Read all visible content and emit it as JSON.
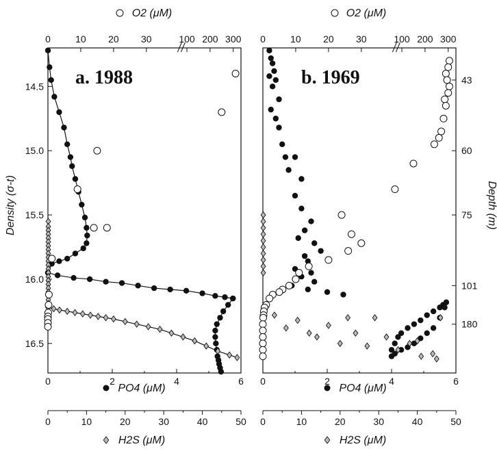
{
  "chart_data": [
    {
      "type": "scatter",
      "title": "a. 1988",
      "ylabel": "Density (σ-t)",
      "xlabel_top": "O2 (μM)",
      "xlabel_bottom": "PO4 (μM)",
      "xlabel_bottom2": "H2S (μM)",
      "ylim": [
        14.2,
        16.73
      ],
      "o2_ticks": [
        "0",
        "10",
        "20",
        "30",
        "100",
        "200",
        "300"
      ],
      "po4_ticks": [
        "0",
        "2",
        "4",
        "6"
      ],
      "h2s_ticks": [
        "0",
        "10",
        "20",
        "30",
        "40",
        "50"
      ],
      "density_ticks": [
        "14.5",
        "15.0",
        "15.5",
        "16.0",
        "16.5"
      ],
      "series": [
        {
          "name": "PO4",
          "marker": "filled-circle",
          "line": true,
          "x": [
            0.0,
            0.05,
            0.1,
            0.2,
            0.35,
            0.5,
            0.6,
            0.7,
            0.75,
            0.85,
            0.95,
            1.05,
            1.15,
            1.2,
            1.22,
            1.2,
            1.1,
            0.85,
            0.6,
            0.35,
            0.12,
            0.0
          ],
          "y": [
            14.22,
            14.35,
            14.45,
            14.58,
            14.7,
            14.82,
            14.95,
            15.05,
            15.12,
            15.22,
            15.32,
            15.42,
            15.52,
            15.6,
            15.66,
            15.72,
            15.76,
            15.8,
            15.84,
            15.86,
            15.88,
            15.95
          ]
        },
        {
          "name": "PO4",
          "marker": "filled-circle",
          "line": true,
          "x": [
            0.0,
            0.3,
            0.8,
            1.3,
            1.8,
            2.3,
            2.8,
            3.3,
            3.8,
            4.3,
            4.8,
            5.2,
            5.5,
            5.75
          ],
          "y": [
            15.95,
            15.97,
            15.99,
            16.0,
            16.02,
            16.03,
            16.05,
            16.07,
            16.08,
            16.09,
            16.11,
            16.13,
            16.14,
            16.15
          ]
        },
        {
          "name": "PO4",
          "marker": "filled-circle",
          "line": true,
          "x": [
            5.75,
            5.6,
            5.45,
            5.35,
            5.25,
            5.2,
            5.2,
            5.22,
            5.25,
            5.27,
            5.3,
            5.32,
            5.35,
            5.38
          ],
          "y": [
            16.15,
            16.2,
            16.25,
            16.3,
            16.35,
            16.4,
            16.45,
            16.5,
            16.55,
            16.6,
            16.63,
            16.66,
            16.69,
            16.72
          ]
        },
        {
          "name": "H2S",
          "marker": "diamond",
          "line": true,
          "x": [
            0.0,
            1.5,
            3.0,
            5.0,
            7.0,
            9.0,
            11.0,
            13.0,
            15.0,
            17.0,
            20.0,
            23.0,
            26.0,
            29.0,
            32.0,
            35.0,
            38.0,
            41.0,
            44.0,
            47.0,
            49.0
          ],
          "y": [
            16.22,
            16.23,
            16.24,
            16.25,
            16.26,
            16.27,
            16.28,
            16.29,
            16.3,
            16.31,
            16.33,
            16.35,
            16.37,
            16.39,
            16.42,
            16.45,
            16.48,
            16.52,
            16.56,
            16.59,
            16.61
          ]
        },
        {
          "name": "H2S",
          "marker": "diamond",
          "line": false,
          "x": [
            0.1,
            0.1,
            0.1,
            0.1,
            0.1,
            0.1,
            0.1,
            0.1,
            0.1,
            0.1,
            0.1,
            0.1,
            0.1,
            0.1,
            0.1,
            0.1,
            0.1,
            0.1,
            0.1,
            0.1,
            0.1,
            0.1
          ],
          "y": [
            15.55,
            15.59,
            15.62,
            15.65,
            15.68,
            15.71,
            15.74,
            15.77,
            15.8,
            15.83,
            15.86,
            15.89,
            15.92,
            15.95,
            15.98,
            16.01,
            16.04,
            16.07,
            16.1,
            16.13,
            16.16,
            16.19
          ]
        },
        {
          "name": "O2",
          "marker": "open-circle",
          "line": false,
          "x": [
            310,
            250,
            15,
            9,
            18,
            14,
            1.2,
            0.3,
            0.2,
            0.1,
            0,
            0,
            0,
            0
          ],
          "y": [
            14.4,
            14.7,
            15.0,
            15.3,
            15.6,
            15.6,
            15.84,
            16.12,
            16.2,
            16.26,
            16.29,
            16.31,
            16.34,
            16.37
          ]
        }
      ]
    },
    {
      "type": "scatter",
      "title": "b. 1969",
      "ylabel": "Depth (m)",
      "xlabel_top": "O2 (μM)",
      "xlabel_bottom": "PO4 (μM)",
      "xlabel_bottom2": "H2S (μM)",
      "depth_ticks": [
        "43",
        "60",
        "75",
        "101",
        "180"
      ],
      "o2_ticks": [
        "0",
        "10",
        "20",
        "30",
        "100",
        "200",
        "300"
      ],
      "po4_ticks": [
        "0",
        "2",
        "4",
        "6"
      ],
      "h2s_ticks": [
        "0",
        "10",
        "20",
        "30",
        "40",
        "50"
      ],
      "series": [
        {
          "name": "PO4",
          "marker": "filled-circle",
          "line": false,
          "x": [
            0.2,
            0.25,
            0.3,
            0.35,
            0.2,
            0.4,
            0.3,
            0.5,
            0.25,
            0.4,
            0.5,
            0.6,
            0.7,
            1.0,
            0.8,
            1.2,
            1.0,
            1.2,
            1.5,
            1.3,
            1.1,
            1.6,
            1.8,
            1.3,
            1.4,
            1.0,
            1.5,
            1.2,
            1.6,
            0.9,
            1.4,
            2.0,
            2.5
          ],
          "y": [
            14.22,
            14.28,
            14.32,
            14.38,
            14.42,
            14.45,
            14.5,
            14.6,
            14.68,
            14.75,
            14.82,
            14.95,
            15.05,
            15.05,
            15.15,
            15.22,
            15.35,
            15.45,
            15.55,
            15.62,
            15.68,
            15.72,
            15.78,
            15.82,
            15.86,
            15.92,
            15.95,
            15.98,
            16.02,
            16.05,
            16.08,
            16.1,
            16.12
          ]
        },
        {
          "name": "PO4",
          "marker": "filled-circle",
          "line": false,
          "x": [
            4.0,
            4.1,
            4.2,
            4.3,
            4.5,
            4.7,
            4.9,
            5.1,
            5.3,
            5.5,
            5.6,
            5.7,
            5.65,
            5.5,
            5.3,
            5.1,
            4.9,
            4.7,
            4.5,
            4.3,
            4.1,
            4.0
          ],
          "y": [
            16.55,
            16.5,
            16.45,
            16.42,
            16.38,
            16.35,
            16.32,
            16.28,
            16.25,
            16.22,
            16.2,
            16.18,
            16.22,
            16.3,
            16.38,
            16.42,
            16.46,
            16.5,
            16.53,
            16.55,
            16.58,
            16.6
          ]
        },
        {
          "name": "O2",
          "marker": "open-circle",
          "line": false,
          "x": [
            305,
            300,
            290,
            295,
            305,
            300,
            285,
            290,
            280,
            270,
            260,
            240,
            150,
            70,
            24,
            27,
            30,
            26,
            20,
            14,
            11,
            10,
            8,
            6,
            5,
            3,
            2,
            1,
            0.5,
            0.3,
            0.2,
            0.1,
            0,
            0,
            0,
            0,
            0,
            0
          ],
          "y": [
            14.3,
            14.35,
            14.4,
            14.45,
            14.5,
            14.55,
            14.6,
            14.65,
            14.75,
            14.85,
            14.9,
            14.95,
            15.1,
            15.3,
            15.5,
            15.65,
            15.72,
            15.78,
            15.85,
            15.9,
            15.95,
            16.0,
            16.05,
            16.08,
            16.1,
            16.12,
            16.15,
            16.2,
            16.22,
            16.25,
            16.28,
            16.3,
            16.35,
            16.4,
            16.45,
            16.5,
            16.55,
            16.6
          ]
        },
        {
          "name": "H2S",
          "marker": "diamond",
          "line": false,
          "x": [
            0.1,
            0.1,
            0.1,
            0.1,
            0.1,
            0.1,
            0.1,
            0.1,
            0.1,
            0.1,
            3,
            6,
            9,
            12,
            14,
            17,
            20,
            22,
            24,
            27,
            29,
            32,
            35,
            38,
            41,
            44,
            45,
            46,
            40
          ],
          "y": [
            15.5,
            15.55,
            15.6,
            15.65,
            15.7,
            15.75,
            15.8,
            15.85,
            15.9,
            15.95,
            16.28,
            16.38,
            16.32,
            16.42,
            16.45,
            16.36,
            16.5,
            16.3,
            16.42,
            16.52,
            16.3,
            16.45,
            16.55,
            16.5,
            16.6,
            16.58,
            16.62,
            16.3,
            16.48
          ]
        }
      ]
    }
  ]
}
